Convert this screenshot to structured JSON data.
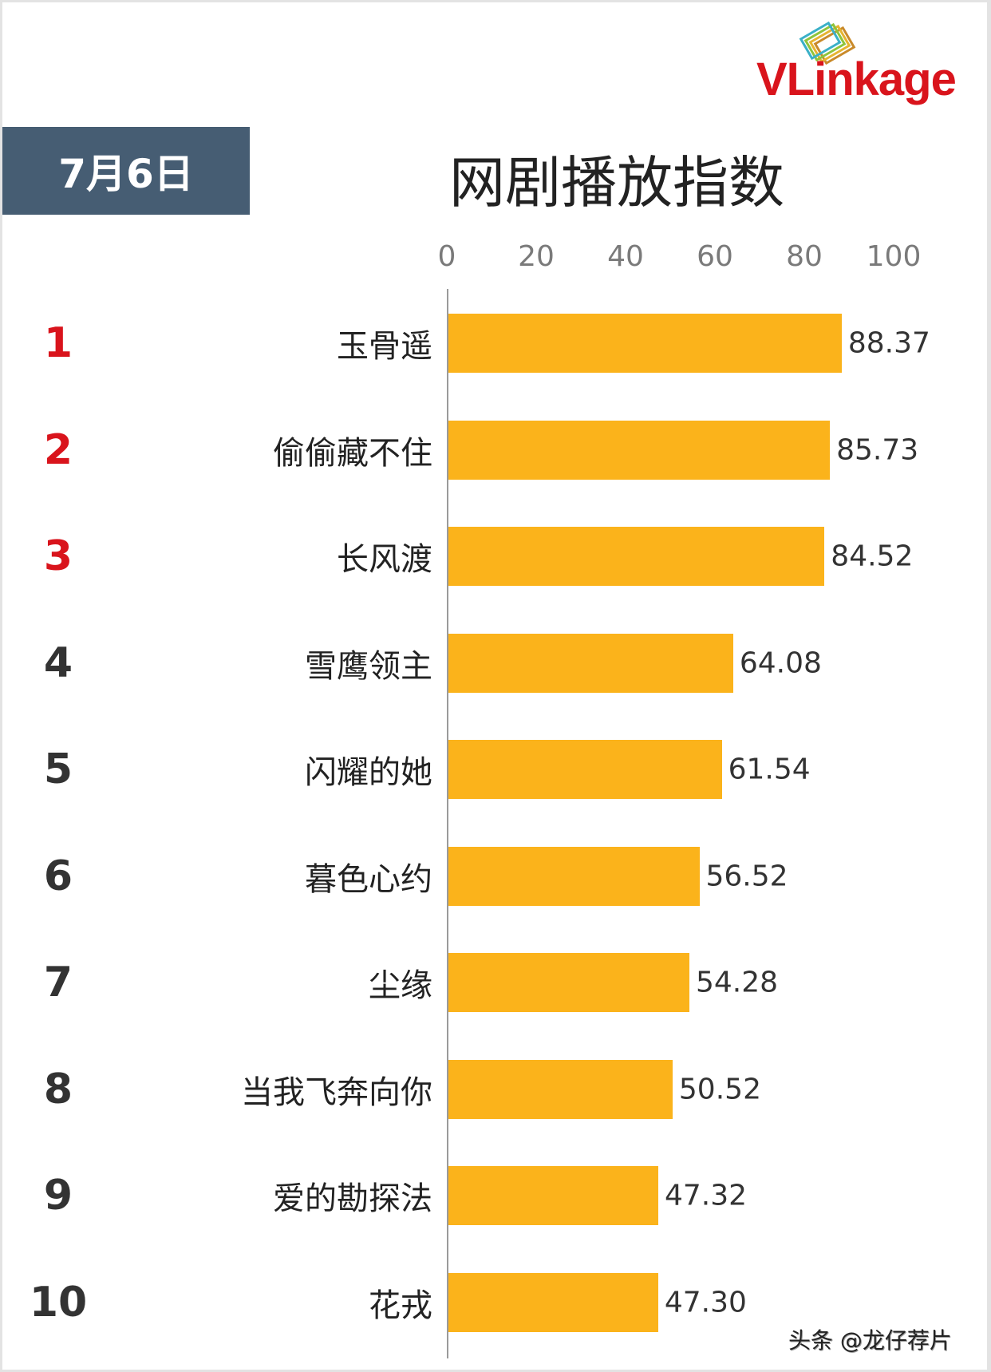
{
  "logo": {
    "text": "VLinkage"
  },
  "date": "7月6日",
  "watermark": "头条 @龙仔荐片",
  "chart_data": {
    "type": "bar",
    "orientation": "horizontal",
    "title": "网剧播放指数",
    "xlim": [
      0,
      100
    ],
    "x_ticks": [
      "0",
      "20",
      "40",
      "60",
      "80",
      "100"
    ],
    "grid": false,
    "bar_color": "#fbb31b",
    "rank_colors": {
      "top3": "#d9141c",
      "other": "#333333"
    },
    "ranks": [
      "1",
      "2",
      "3",
      "4",
      "5",
      "6",
      "7",
      "8",
      "9",
      "10"
    ],
    "categories": [
      "玉骨遥",
      "偷偷藏不住",
      "长风渡",
      "雪鹰领主",
      "闪耀的她",
      "暮色心约",
      "尘缘",
      "当我飞奔向你",
      "爱的勘探法",
      "花戎"
    ],
    "values": [
      88.37,
      85.73,
      84.52,
      64.08,
      61.54,
      56.52,
      54.28,
      50.52,
      47.32,
      47.3
    ],
    "value_labels": [
      "88.37",
      "85.73",
      "84.52",
      "64.08",
      "61.54",
      "56.52",
      "54.28",
      "50.52",
      "47.32",
      "47.30"
    ]
  }
}
